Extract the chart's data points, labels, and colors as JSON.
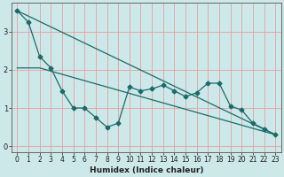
{
  "xlabel": "Humidex (Indice chaleur)",
  "bg_color": "#cce8e8",
  "line_color": "#1a6b6b",
  "grid_color": "#e8a0a0",
  "xlim": [
    -0.5,
    23.5
  ],
  "ylim": [
    -0.15,
    3.75
  ],
  "yticks": [
    0,
    1,
    2,
    3
  ],
  "xticks": [
    0,
    1,
    2,
    3,
    4,
    5,
    6,
    7,
    8,
    9,
    10,
    11,
    12,
    13,
    14,
    15,
    16,
    17,
    18,
    19,
    20,
    21,
    22,
    23
  ],
  "line1_x": [
    0,
    1,
    2,
    3,
    4,
    5,
    6,
    7,
    8,
    9,
    10,
    11,
    12,
    13,
    14,
    15,
    16,
    17,
    18,
    19,
    20,
    21,
    22,
    23
  ],
  "line1_y": [
    3.55,
    3.25,
    2.35,
    2.05,
    1.45,
    1.0,
    1.0,
    0.75,
    0.5,
    0.6,
    1.55,
    1.45,
    1.5,
    1.6,
    1.45,
    1.3,
    1.4,
    1.65,
    1.65,
    1.05,
    0.95,
    0.6,
    0.45,
    0.3
  ],
  "line2_x": [
    0,
    23
  ],
  "line2_y": [
    3.55,
    0.3
  ],
  "line3_x": [
    0,
    2,
    23
  ],
  "line3_y": [
    2.05,
    2.05,
    0.3
  ],
  "marker_size": 2.5,
  "xlabel_fontsize": 6.5,
  "tick_fontsize": 5.5
}
